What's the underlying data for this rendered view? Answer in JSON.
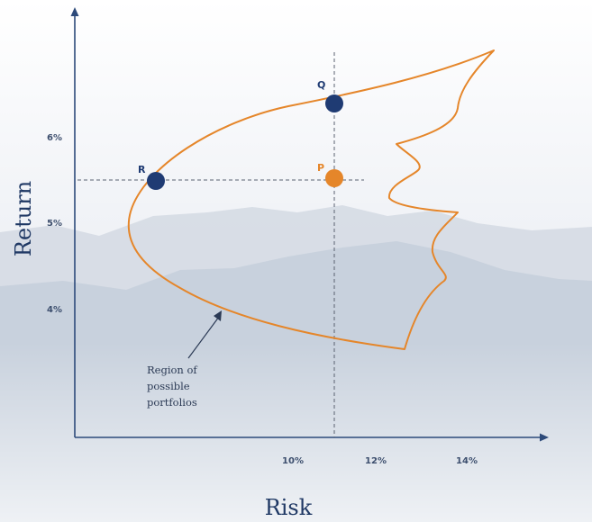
{
  "axes": {
    "x_title": "Risk",
    "y_title": "Return",
    "x_ticks": [
      {
        "label": "10%",
        "value": 10
      },
      {
        "label": "12%",
        "value": 12
      },
      {
        "label": "14%",
        "value": 14
      }
    ],
    "y_ticks": [
      {
        "label": "6%",
        "value": 6
      },
      {
        "label": "5%",
        "value": 5
      },
      {
        "label": "4%",
        "value": 4
      }
    ]
  },
  "points": [
    {
      "id": "Q",
      "label": "Q",
      "risk": 11.0,
      "return": 6.35,
      "color": "#1f3b73",
      "label_color": "#1f3b73"
    },
    {
      "id": "R",
      "label": "R",
      "risk": 7.2,
      "return": 5.5,
      "color": "#1f3b73",
      "label_color": "#1f3b73"
    },
    {
      "id": "P",
      "label": "P",
      "risk": 11.0,
      "return": 5.5,
      "color": "#e5862a",
      "label_color": "#e5862a"
    }
  ],
  "annotation": {
    "lines": [
      "Region of",
      "possible",
      "portfolios"
    ]
  },
  "colors": {
    "curve": "#e5862a",
    "axis": "#2d4a7a",
    "guide": "#5a6170",
    "text": "#1f3864"
  }
}
